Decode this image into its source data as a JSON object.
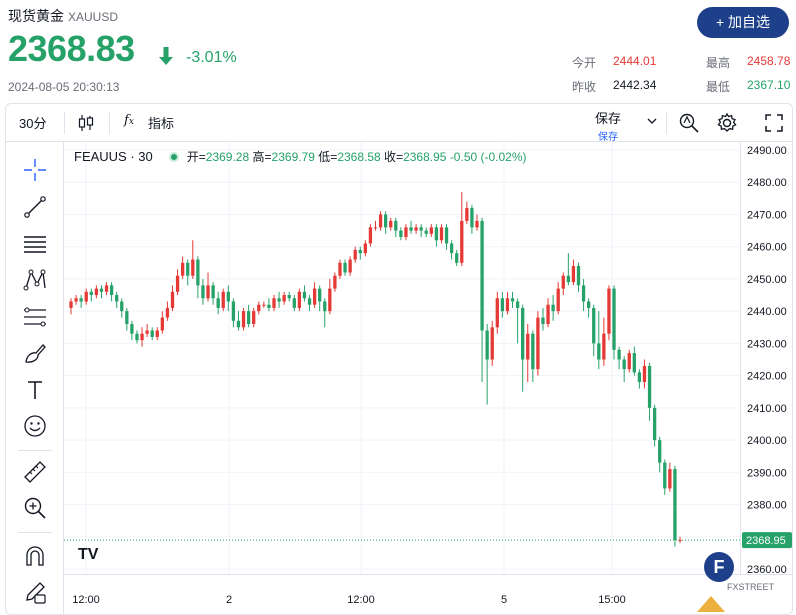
{
  "header": {
    "title": "现货黄金",
    "code": "XAUUSD",
    "price": "2368.83",
    "change": "-3.01%",
    "datetime": "2024-08-05 20:30:13",
    "add_button": "+ 加自选",
    "stats": {
      "open_label": "今开",
      "open_value": "2444.01",
      "high_label": "最高",
      "high_value": "2458.78",
      "prev_label": "昨收",
      "prev_value": "2442.34",
      "low_label": "最低",
      "low_value": "2367.10"
    }
  },
  "toolbar": {
    "interval": "30分",
    "indicators": "指标",
    "save": "保存",
    "save_sub": "保存"
  },
  "drawing_tools": [
    "crosshair-icon",
    "trend-line-icon",
    "horizontal-lines-icon",
    "pattern-icon",
    "fib-icon",
    "brush-icon",
    "text-icon",
    "emoji-icon",
    "ruler-icon",
    "zoom-in-icon",
    "magnet-icon",
    "lock-pencil-icon"
  ],
  "legend": {
    "symbol": "FEAUUS · 30",
    "open_label": "开",
    "open": "2369.28",
    "high_label": "高",
    "high": "2369.79",
    "low_label": "低",
    "low": "2368.58",
    "close_label": "收",
    "close": "2368.95",
    "change": "-0.50 (-0.02%)"
  },
  "brand": {
    "tv": "TV",
    "watermark_letter": "F",
    "watermark_text": "FXSTREET"
  },
  "colors": {
    "up": "#26a269",
    "down": "#e53935",
    "accent": "#1e3f8a"
  },
  "chart_data": {
    "type": "candlestick",
    "symbol": "FEAUUS",
    "interval": "30",
    "ylim": [
      2360,
      2490
    ],
    "y_ticks": [
      "2490.00",
      "2480.00",
      "2470.00",
      "2460.00",
      "2450.00",
      "2440.00",
      "2430.00",
      "2420.00",
      "2410.00",
      "2400.00",
      "2390.00",
      "2380.00",
      "2370.00",
      "2360.00"
    ],
    "last_price": "2368.95",
    "x_ticks": [
      "12:00",
      "2",
      "12:00",
      "5",
      "15:00"
    ],
    "candles": [
      [
        2441,
        2443,
        2439,
        2444
      ],
      [
        2443,
        2444,
        2442,
        2445
      ],
      [
        2444,
        2443,
        2441,
        2445
      ],
      [
        2443,
        2446,
        2442,
        2447
      ],
      [
        2446,
        2445,
        2443,
        2447
      ],
      [
        2445,
        2447,
        2444,
        2448
      ],
      [
        2447,
        2446,
        2444,
        2448
      ],
      [
        2446,
        2448,
        2445,
        2449
      ],
      [
        2448,
        2445,
        2443,
        2449
      ],
      [
        2445,
        2443,
        2441,
        2446
      ],
      [
        2443,
        2440,
        2438,
        2444
      ],
      [
        2440,
        2436,
        2434,
        2441
      ],
      [
        2436,
        2433,
        2431,
        2437
      ],
      [
        2433,
        2431,
        2430,
        2434
      ],
      [
        2431,
        2433,
        2429,
        2435
      ],
      [
        2433,
        2434,
        2432,
        2436
      ],
      [
        2434,
        2432,
        2431,
        2435
      ],
      [
        2432,
        2434,
        2431,
        2435
      ],
      [
        2434,
        2438,
        2433,
        2440
      ],
      [
        2438,
        2441,
        2437,
        2443
      ],
      [
        2441,
        2446,
        2440,
        2448
      ],
      [
        2446,
        2451,
        2445,
        2453
      ],
      [
        2451,
        2455,
        2450,
        2457
      ],
      [
        2455,
        2451,
        2448,
        2456
      ],
      [
        2451,
        2456,
        2450,
        2462
      ],
      [
        2456,
        2448,
        2444,
        2457
      ],
      [
        2448,
        2444,
        2442,
        2450
      ],
      [
        2444,
        2448,
        2443,
        2452
      ],
      [
        2448,
        2444,
        2442,
        2449
      ],
      [
        2444,
        2441,
        2439,
        2446
      ],
      [
        2441,
        2446,
        2440,
        2447
      ],
      [
        2446,
        2443,
        2440,
        2448
      ],
      [
        2443,
        2437,
        2435,
        2444
      ],
      [
        2437,
        2435,
        2434,
        2440
      ],
      [
        2435,
        2440,
        2434,
        2441
      ],
      [
        2440,
        2436,
        2435,
        2442
      ],
      [
        2436,
        2440,
        2435,
        2441
      ],
      [
        2440,
        2442,
        2439,
        2443
      ],
      [
        2442,
        2442,
        2441,
        2443
      ],
      [
        2442,
        2441,
        2440,
        2444
      ],
      [
        2441,
        2444,
        2440,
        2445
      ],
      [
        2444,
        2443,
        2441,
        2446
      ],
      [
        2443,
        2445,
        2442,
        2446
      ],
      [
        2445,
        2444,
        2443,
        2446
      ],
      [
        2444,
        2441,
        2440,
        2445
      ],
      [
        2441,
        2446,
        2440,
        2447
      ],
      [
        2446,
        2444,
        2443,
        2448
      ],
      [
        2444,
        2442,
        2440,
        2445
      ],
      [
        2442,
        2447,
        2441,
        2449
      ],
      [
        2447,
        2443,
        2440,
        2448
      ],
      [
        2443,
        2440,
        2435,
        2444
      ],
      [
        2440,
        2447,
        2439,
        2450
      ],
      [
        2447,
        2451,
        2446,
        2452
      ],
      [
        2451,
        2455,
        2450,
        2456
      ],
      [
        2455,
        2452,
        2451,
        2456
      ],
      [
        2452,
        2456,
        2451,
        2457
      ],
      [
        2456,
        2459,
        2455,
        2460
      ],
      [
        2459,
        2458,
        2456,
        2460
      ],
      [
        2458,
        2461,
        2457,
        2462
      ],
      [
        2461,
        2466,
        2460,
        2467
      ],
      [
        2466,
        2466,
        2465,
        2468
      ],
      [
        2466,
        2470,
        2465,
        2471
      ],
      [
        2470,
        2466,
        2464,
        2471
      ],
      [
        2466,
        2468,
        2465,
        2469
      ],
      [
        2468,
        2465,
        2463,
        2469
      ],
      [
        2465,
        2463,
        2462,
        2466
      ],
      [
        2463,
        2466,
        2462,
        2467
      ],
      [
        2466,
        2465,
        2464,
        2468
      ],
      [
        2465,
        2466,
        2464,
        2467
      ],
      [
        2466,
        2465,
        2463,
        2467
      ],
      [
        2465,
        2464,
        2463,
        2466
      ],
      [
        2464,
        2466,
        2463,
        2467
      ],
      [
        2466,
        2462,
        2460,
        2467
      ],
      [
        2462,
        2466,
        2461,
        2467
      ],
      [
        2466,
        2461,
        2459,
        2467
      ],
      [
        2461,
        2458,
        2456,
        2462
      ],
      [
        2458,
        2455,
        2454,
        2459
      ],
      [
        2455,
        2468,
        2454,
        2477
      ],
      [
        2468,
        2472,
        2467,
        2474
      ],
      [
        2472,
        2466,
        2464,
        2473
      ],
      [
        2466,
        2468,
        2465,
        2470
      ],
      [
        2468,
        2434,
        2418,
        2469
      ],
      [
        2434,
        2425,
        2411,
        2436
      ],
      [
        2425,
        2435,
        2423,
        2437
      ],
      [
        2435,
        2444,
        2433,
        2446
      ],
      [
        2444,
        2440,
        2438,
        2446
      ],
      [
        2440,
        2444,
        2439,
        2446
      ],
      [
        2444,
        2443,
        2441,
        2446
      ],
      [
        2443,
        2441,
        2430,
        2444
      ],
      [
        2441,
        2425,
        2415,
        2442
      ],
      [
        2425,
        2433,
        2418,
        2436
      ],
      [
        2433,
        2422,
        2418,
        2434
      ],
      [
        2422,
        2438,
        2420,
        2440
      ],
      [
        2438,
        2436,
        2434,
        2441
      ],
      [
        2436,
        2442,
        2435,
        2444
      ],
      [
        2442,
        2440,
        2437,
        2445
      ],
      [
        2440,
        2447,
        2439,
        2449
      ],
      [
        2447,
        2451,
        2445,
        2452
      ],
      [
        2451,
        2449,
        2448,
        2458
      ],
      [
        2449,
        2454,
        2448,
        2456
      ],
      [
        2454,
        2448,
        2446,
        2455
      ],
      [
        2448,
        2443,
        2440,
        2450
      ],
      [
        2443,
        2441,
        2438,
        2444
      ],
      [
        2441,
        2430,
        2426,
        2442
      ],
      [
        2430,
        2425,
        2422,
        2440
      ],
      [
        2425,
        2433,
        2423,
        2438
      ],
      [
        2433,
        2447,
        2431,
        2448
      ],
      [
        2447,
        2428,
        2425,
        2448
      ],
      [
        2428,
        2425,
        2422,
        2429
      ],
      [
        2425,
        2422,
        2418,
        2426
      ],
      [
        2422,
        2427,
        2421,
        2428
      ],
      [
        2427,
        2421,
        2420,
        2429
      ],
      [
        2421,
        2418,
        2416,
        2422
      ],
      [
        2418,
        2423,
        2416,
        2425
      ],
      [
        2423,
        2410,
        2406,
        2424
      ],
      [
        2410,
        2400,
        2398,
        2411
      ],
      [
        2400,
        2393,
        2390,
        2401
      ],
      [
        2393,
        2385,
        2383,
        2394
      ],
      [
        2385,
        2391,
        2384,
        2393
      ],
      [
        2391,
        2369,
        2367,
        2392
      ],
      [
        2369,
        2369,
        2368,
        2370
      ]
    ]
  }
}
